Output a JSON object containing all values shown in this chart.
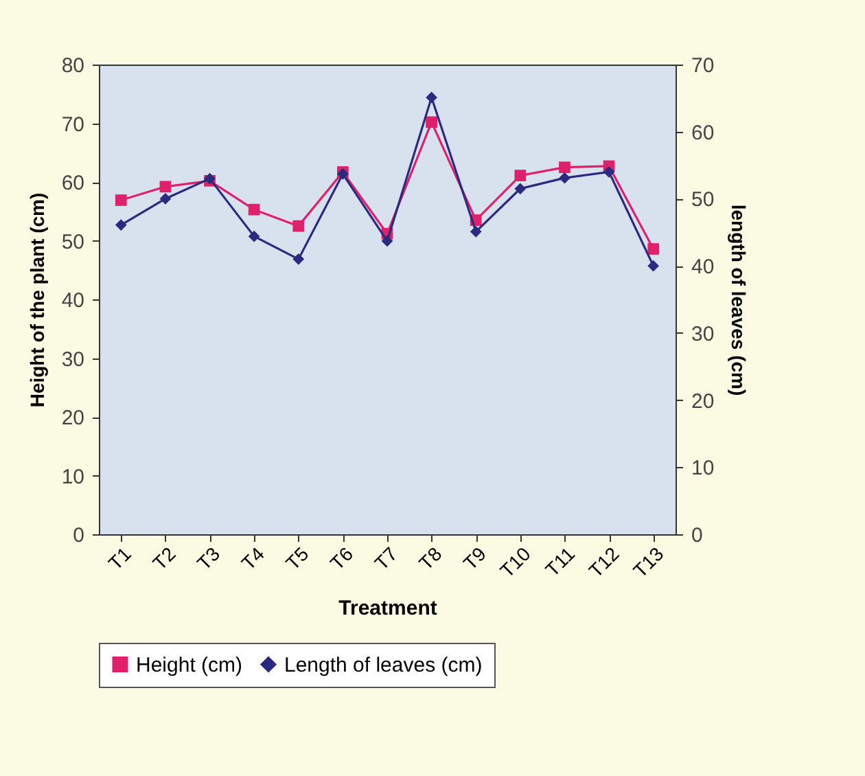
{
  "chart_data": {
    "type": "line",
    "xlabel": "Treatment",
    "ylabel": "Height of the plant (cm)",
    "y2label": "length of leaves (cm)",
    "categories": [
      "T1",
      "T2",
      "T3",
      "T4",
      "T5",
      "T6",
      "T7",
      "T8",
      "T9",
      "T10",
      "T11",
      "T12",
      "T13"
    ],
    "series": [
      {
        "name": "Height (cm)",
        "color": "#e0206a",
        "marker": "square",
        "values": [
          56.9,
          59.2,
          60.2,
          55.3,
          52.5,
          61.7,
          51.2,
          70.2,
          53.5,
          61.1,
          62.5,
          62.7,
          48.6
        ]
      },
      {
        "name": "Length of leaves (cm)",
        "color": "#2a2a80",
        "marker": "diamond",
        "axis": "y2",
        "values": [
          46.1,
          50.0,
          53.0,
          44.4,
          41.0,
          53.7,
          43.7,
          65.1,
          45.1,
          51.5,
          53.1,
          54.0,
          40.0
        ]
      }
    ],
    "ylim": [
      0,
      80
    ],
    "yticks": [
      0,
      10,
      20,
      30,
      40,
      50,
      60,
      70,
      80
    ],
    "y2lim": [
      0,
      70
    ],
    "y2ticks": [
      0,
      10,
      20,
      30,
      40,
      50,
      60,
      70
    ],
    "grid": false,
    "legend": "bottom"
  }
}
